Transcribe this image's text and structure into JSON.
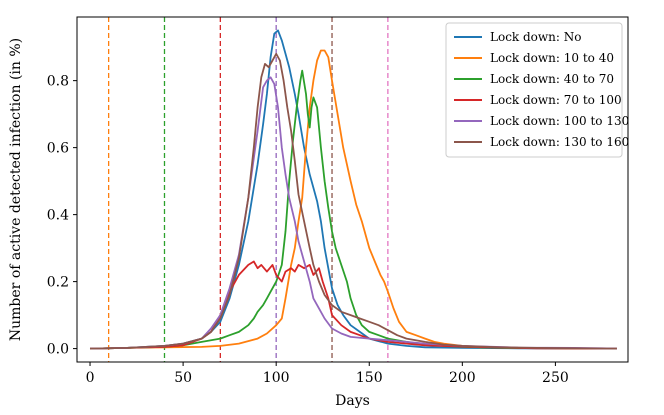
{
  "chart_data": {
    "type": "line",
    "title": "",
    "xlabel": "Days",
    "ylabel": "Number of active detected infection (in %)",
    "xlim": [
      -7,
      289
    ],
    "ylim": [
      -0.04,
      0.99
    ],
    "xticks": [
      0,
      50,
      100,
      150,
      200,
      250
    ],
    "yticks": [
      0.0,
      0.2,
      0.4,
      0.6,
      0.8
    ],
    "ytick_labels": [
      "0.0",
      "0.2",
      "0.4",
      "0.6",
      "0.8"
    ],
    "legend_position": "top-right",
    "grid": false,
    "vlines": [
      {
        "x": 10,
        "color": "#ff7f0e"
      },
      {
        "x": 40,
        "color": "#2ca02c"
      },
      {
        "x": 70,
        "color": "#d62728"
      },
      {
        "x": 100,
        "color": "#9467bd"
      },
      {
        "x": 130,
        "color": "#8c564b"
      },
      {
        "x": 160,
        "color": "#e377c2"
      }
    ],
    "series": [
      {
        "name": "Lock down: No",
        "color": "#1f77b4",
        "points": [
          [
            0,
            0
          ],
          [
            20,
            0.002
          ],
          [
            40,
            0.008
          ],
          [
            50,
            0.015
          ],
          [
            60,
            0.03
          ],
          [
            65,
            0.05
          ],
          [
            70,
            0.08
          ],
          [
            75,
            0.15
          ],
          [
            80,
            0.25
          ],
          [
            85,
            0.38
          ],
          [
            90,
            0.55
          ],
          [
            93,
            0.67
          ],
          [
            95,
            0.76
          ],
          [
            97,
            0.87
          ],
          [
            99,
            0.94
          ],
          [
            101,
            0.95
          ],
          [
            103,
            0.92
          ],
          [
            105,
            0.88
          ],
          [
            107,
            0.84
          ],
          [
            110,
            0.76
          ],
          [
            112,
            0.7
          ],
          [
            115,
            0.6
          ],
          [
            118,
            0.52
          ],
          [
            120,
            0.48
          ],
          [
            122,
            0.44
          ],
          [
            124,
            0.38
          ],
          [
            126,
            0.3
          ],
          [
            128,
            0.24
          ],
          [
            130,
            0.18
          ],
          [
            133,
            0.13
          ],
          [
            136,
            0.1
          ],
          [
            140,
            0.07
          ],
          [
            145,
            0.05
          ],
          [
            150,
            0.03
          ],
          [
            160,
            0.015
          ],
          [
            170,
            0.008
          ],
          [
            180,
            0.004
          ],
          [
            200,
            0.002
          ],
          [
            230,
            0.001
          ],
          [
            283,
            0
          ]
        ]
      },
      {
        "name": "Lock down: 10 to 40",
        "color": "#ff7f0e",
        "points": [
          [
            0,
            0
          ],
          [
            20,
            0.002
          ],
          [
            40,
            0.004
          ],
          [
            60,
            0.005
          ],
          [
            70,
            0.008
          ],
          [
            80,
            0.015
          ],
          [
            90,
            0.03
          ],
          [
            95,
            0.045
          ],
          [
            100,
            0.07
          ],
          [
            103,
            0.09
          ],
          [
            105,
            0.15
          ],
          [
            108,
            0.25
          ],
          [
            110,
            0.3
          ],
          [
            112,
            0.38
          ],
          [
            114,
            0.45
          ],
          [
            116,
            0.6
          ],
          [
            118,
            0.72
          ],
          [
            120,
            0.8
          ],
          [
            122,
            0.86
          ],
          [
            124,
            0.89
          ],
          [
            126,
            0.89
          ],
          [
            128,
            0.87
          ],
          [
            130,
            0.8
          ],
          [
            133,
            0.7
          ],
          [
            136,
            0.6
          ],
          [
            140,
            0.5
          ],
          [
            143,
            0.43
          ],
          [
            146,
            0.38
          ],
          [
            150,
            0.3
          ],
          [
            153,
            0.26
          ],
          [
            156,
            0.22
          ],
          [
            158,
            0.2
          ],
          [
            160,
            0.17
          ],
          [
            163,
            0.12
          ],
          [
            166,
            0.08
          ],
          [
            170,
            0.05
          ],
          [
            175,
            0.04
          ],
          [
            180,
            0.03
          ],
          [
            185,
            0.02
          ],
          [
            190,
            0.015
          ],
          [
            200,
            0.008
          ],
          [
            210,
            0.004
          ],
          [
            230,
            0.002
          ],
          [
            283,
            0
          ]
        ]
      },
      {
        "name": "Lock down: 40 to 70",
        "color": "#2ca02c",
        "points": [
          [
            0,
            0
          ],
          [
            20,
            0.002
          ],
          [
            40,
            0.005
          ],
          [
            50,
            0.01
          ],
          [
            60,
            0.02
          ],
          [
            70,
            0.03
          ],
          [
            75,
            0.04
          ],
          [
            80,
            0.05
          ],
          [
            85,
            0.07
          ],
          [
            88,
            0.09
          ],
          [
            90,
            0.11
          ],
          [
            93,
            0.13
          ],
          [
            95,
            0.15
          ],
          [
            97,
            0.17
          ],
          [
            100,
            0.2
          ],
          [
            103,
            0.25
          ],
          [
            105,
            0.35
          ],
          [
            107,
            0.5
          ],
          [
            109,
            0.62
          ],
          [
            111,
            0.72
          ],
          [
            113,
            0.8
          ],
          [
            114,
            0.83
          ],
          [
            116,
            0.76
          ],
          [
            117,
            0.7
          ],
          [
            118,
            0.66
          ],
          [
            119,
            0.72
          ],
          [
            120,
            0.75
          ],
          [
            122,
            0.72
          ],
          [
            124,
            0.6
          ],
          [
            126,
            0.5
          ],
          [
            128,
            0.42
          ],
          [
            130,
            0.35
          ],
          [
            132,
            0.3
          ],
          [
            135,
            0.25
          ],
          [
            138,
            0.2
          ],
          [
            140,
            0.15
          ],
          [
            143,
            0.1
          ],
          [
            146,
            0.07
          ],
          [
            150,
            0.05
          ],
          [
            155,
            0.04
          ],
          [
            160,
            0.03
          ],
          [
            170,
            0.02
          ],
          [
            180,
            0.012
          ],
          [
            190,
            0.008
          ],
          [
            200,
            0.005
          ],
          [
            220,
            0.002
          ],
          [
            283,
            0
          ]
        ]
      },
      {
        "name": "Lock down: 70 to 100",
        "color": "#d62728",
        "points": [
          [
            0,
            0
          ],
          [
            20,
            0.002
          ],
          [
            40,
            0.005
          ],
          [
            50,
            0.01
          ],
          [
            60,
            0.03
          ],
          [
            65,
            0.05
          ],
          [
            70,
            0.1
          ],
          [
            75,
            0.17
          ],
          [
            80,
            0.22
          ],
          [
            85,
            0.25
          ],
          [
            88,
            0.26
          ],
          [
            90,
            0.24
          ],
          [
            92,
            0.25
          ],
          [
            95,
            0.23
          ],
          [
            98,
            0.25
          ],
          [
            100,
            0.22
          ],
          [
            103,
            0.2
          ],
          [
            105,
            0.23
          ],
          [
            108,
            0.24
          ],
          [
            110,
            0.23
          ],
          [
            112,
            0.25
          ],
          [
            115,
            0.24
          ],
          [
            118,
            0.25
          ],
          [
            120,
            0.22
          ],
          [
            123,
            0.24
          ],
          [
            125,
            0.2
          ],
          [
            128,
            0.15
          ],
          [
            130,
            0.1
          ],
          [
            135,
            0.07
          ],
          [
            140,
            0.05
          ],
          [
            145,
            0.04
          ],
          [
            150,
            0.03
          ],
          [
            160,
            0.02
          ],
          [
            170,
            0.015
          ],
          [
            180,
            0.01
          ],
          [
            200,
            0.006
          ],
          [
            220,
            0.003
          ],
          [
            240,
            0.001
          ],
          [
            283,
            0
          ]
        ]
      },
      {
        "name": "Lock down: 100 to 130",
        "color": "#9467bd",
        "points": [
          [
            0,
            0
          ],
          [
            20,
            0.002
          ],
          [
            40,
            0.008
          ],
          [
            50,
            0.015
          ],
          [
            60,
            0.03
          ],
          [
            65,
            0.06
          ],
          [
            70,
            0.1
          ],
          [
            75,
            0.18
          ],
          [
            80,
            0.28
          ],
          [
            85,
            0.45
          ],
          [
            90,
            0.65
          ],
          [
            93,
            0.78
          ],
          [
            95,
            0.8
          ],
          [
            97,
            0.81
          ],
          [
            99,
            0.79
          ],
          [
            101,
            0.72
          ],
          [
            103,
            0.6
          ],
          [
            105,
            0.52
          ],
          [
            107,
            0.45
          ],
          [
            110,
            0.38
          ],
          [
            112,
            0.32
          ],
          [
            115,
            0.26
          ],
          [
            118,
            0.2
          ],
          [
            120,
            0.15
          ],
          [
            123,
            0.12
          ],
          [
            126,
            0.09
          ],
          [
            130,
            0.06
          ],
          [
            135,
            0.045
          ],
          [
            140,
            0.035
          ],
          [
            150,
            0.03
          ],
          [
            160,
            0.025
          ],
          [
            170,
            0.02
          ],
          [
            180,
            0.015
          ],
          [
            200,
            0.008
          ],
          [
            230,
            0.003
          ],
          [
            260,
            0.002
          ],
          [
            275,
            0.001
          ],
          [
            283,
            0
          ]
        ]
      },
      {
        "name": "Lock down: 130 to 160",
        "color": "#8c564b",
        "points": [
          [
            0,
            0
          ],
          [
            20,
            0.002
          ],
          [
            40,
            0.008
          ],
          [
            50,
            0.015
          ],
          [
            60,
            0.03
          ],
          [
            65,
            0.05
          ],
          [
            70,
            0.09
          ],
          [
            75,
            0.16
          ],
          [
            80,
            0.27
          ],
          [
            85,
            0.45
          ],
          [
            88,
            0.6
          ],
          [
            90,
            0.72
          ],
          [
            92,
            0.81
          ],
          [
            94,
            0.85
          ],
          [
            96,
            0.84
          ],
          [
            98,
            0.86
          ],
          [
            100,
            0.88
          ],
          [
            102,
            0.86
          ],
          [
            104,
            0.8
          ],
          [
            106,
            0.72
          ],
          [
            108,
            0.65
          ],
          [
            110,
            0.56
          ],
          [
            112,
            0.46
          ],
          [
            115,
            0.38
          ],
          [
            118,
            0.3
          ],
          [
            120,
            0.25
          ],
          [
            123,
            0.2
          ],
          [
            126,
            0.16
          ],
          [
            130,
            0.13
          ],
          [
            135,
            0.11
          ],
          [
            140,
            0.1
          ],
          [
            145,
            0.09
          ],
          [
            150,
            0.08
          ],
          [
            155,
            0.07
          ],
          [
            160,
            0.055
          ],
          [
            165,
            0.04
          ],
          [
            170,
            0.03
          ],
          [
            180,
            0.02
          ],
          [
            190,
            0.012
          ],
          [
            200,
            0.008
          ],
          [
            220,
            0.004
          ],
          [
            240,
            0.002
          ],
          [
            283,
            0
          ]
        ]
      }
    ]
  }
}
